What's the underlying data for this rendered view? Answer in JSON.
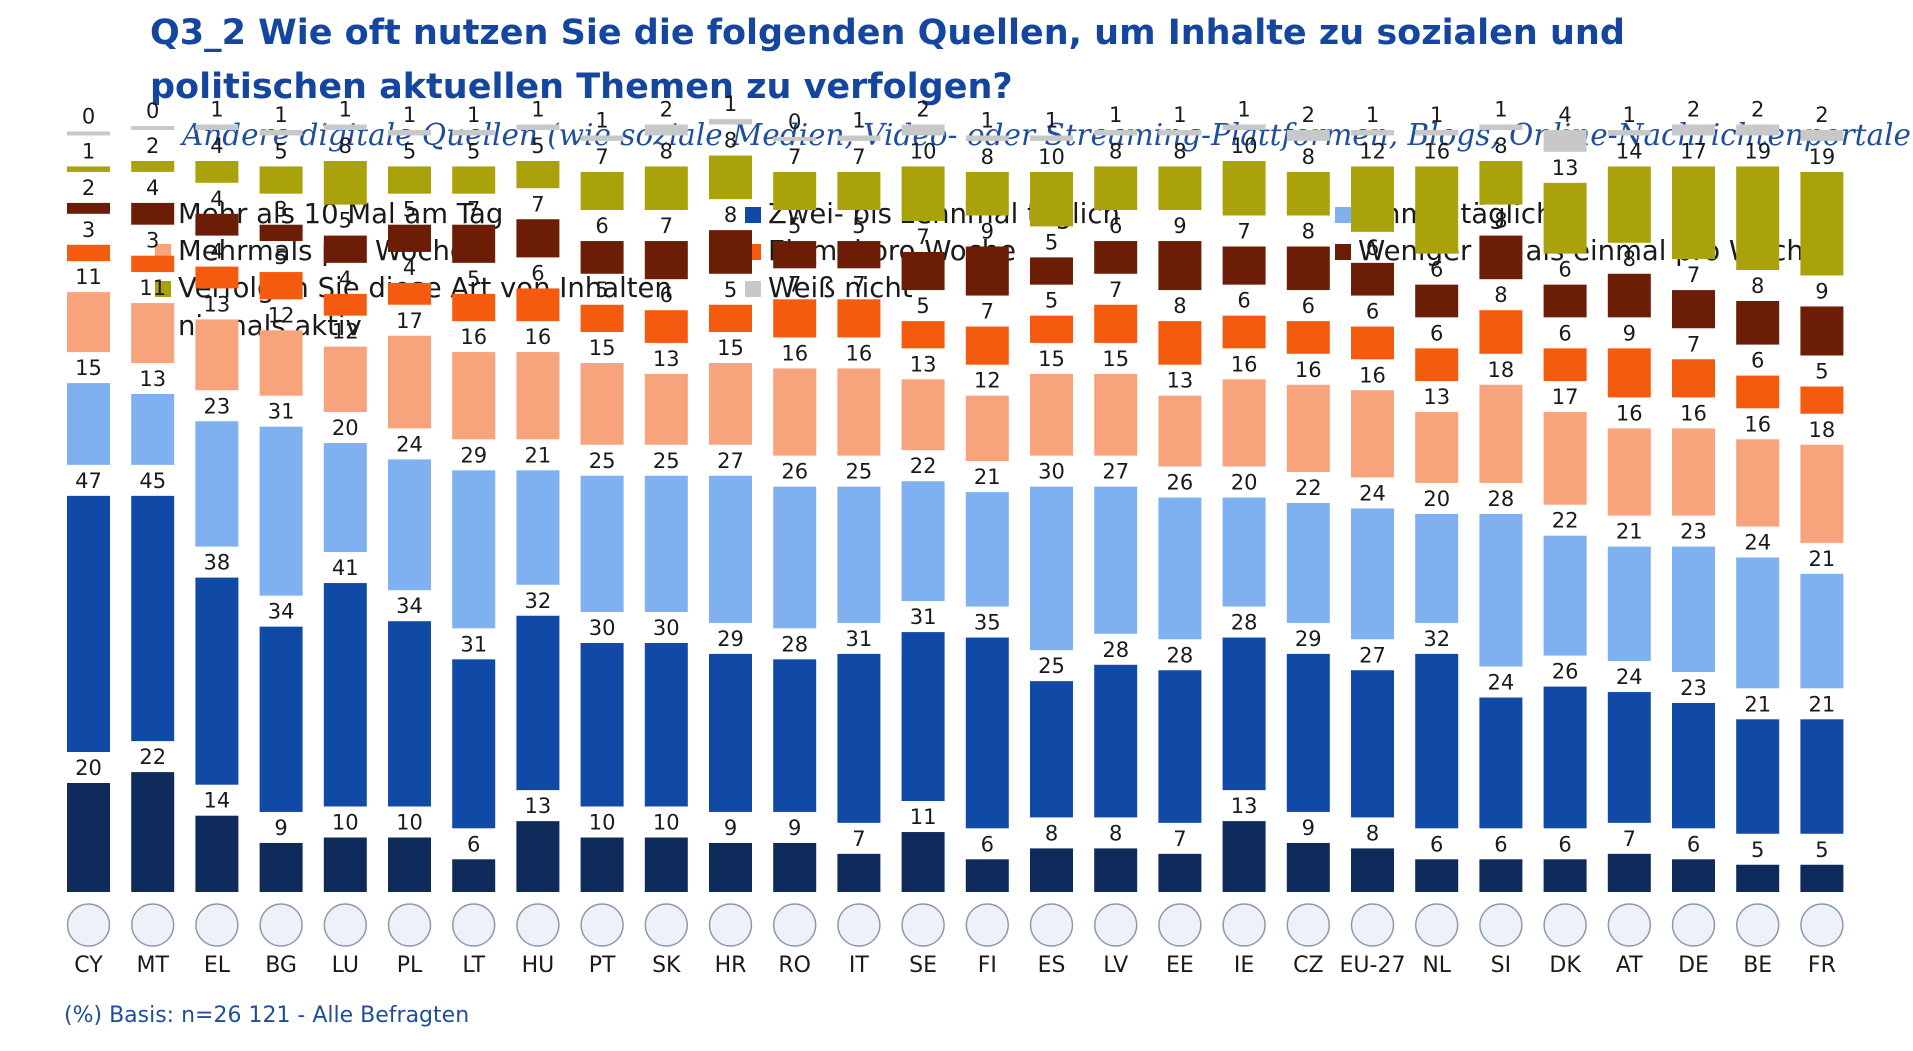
{
  "title": "Q3_2 Wie oft nutzen Sie die folgenden Quellen, um Inhalte zu sozialen und politischen aktuellen Themen zu verfolgen?",
  "subtitle": "Andere digitale Quellen (wie soziale Medien, Video- oder Streaming-Plattformen, Blogs, Online-Nachrichtenportale usw.)",
  "footer": "(%) Basis: n=26 121 - Alle Befragten",
  "legend": [
    {
      "label": "Mehr als 10 Mal am Tag",
      "color": "#0f2b5b"
    },
    {
      "label": "Zwei- bis zehnmal täglich",
      "color": "#114aa6"
    },
    {
      "label": "Einmal täglich",
      "color": "#7fb0f0"
    },
    {
      "label": "Mehrmals pro Woche",
      "color": "#f7a37c"
    },
    {
      "label": "Einmal pro Woche",
      "color": "#f55b0e"
    },
    {
      "label": "Weniger oft als einmal pro Woche",
      "color": "#6b1d06"
    },
    {
      "label": "Verfolgen Sie diese Art von Inhalten niemals aktiv",
      "color": "#aaa20a"
    },
    {
      "label": "Weiß nicht",
      "color": "#c8c8c8"
    }
  ],
  "chart_data": {
    "type": "bar",
    "stacked": true,
    "title": "Q3_2 Wie oft nutzen Sie die folgenden Quellen, um Inhalte zu sozialen und politischen aktuellen Themen zu verfolgen?",
    "subtitle": "Andere digitale Quellen (wie soziale Medien, Video- oder Streaming-Plattformen, Blogs, Online-Nachrichtenportale usw.)",
    "categories": [
      "CY",
      "MT",
      "EL",
      "BG",
      "LU",
      "PL",
      "LT",
      "HU",
      "PT",
      "SK",
      "HR",
      "RO",
      "IT",
      "SE",
      "FI",
      "ES",
      "LV",
      "EE",
      "IE",
      "CZ",
      "EU-27",
      "NL",
      "SI",
      "DK",
      "AT",
      "DE",
      "BE",
      "FR"
    ],
    "series": [
      {
        "name": "Mehr als 10 Mal am Tag",
        "values": [
          20,
          22,
          14,
          9,
          10,
          10,
          6,
          13,
          10,
          10,
          9,
          9,
          7,
          11,
          6,
          8,
          8,
          7,
          13,
          9,
          8,
          6,
          6,
          6,
          7,
          6,
          5,
          5
        ]
      },
      {
        "name": "Zwei- bis zehnmal täglich",
        "values": [
          47,
          45,
          38,
          34,
          41,
          34,
          31,
          32,
          30,
          30,
          29,
          28,
          31,
          31,
          35,
          25,
          28,
          28,
          28,
          29,
          27,
          32,
          24,
          26,
          24,
          23,
          21,
          21
        ]
      },
      {
        "name": "Einmal täglich",
        "values": [
          15,
          13,
          23,
          31,
          20,
          24,
          29,
          21,
          25,
          25,
          27,
          26,
          25,
          22,
          21,
          30,
          27,
          26,
          20,
          22,
          24,
          20,
          28,
          22,
          21,
          23,
          24,
          21
        ]
      },
      {
        "name": "Mehrmals pro Woche",
        "values": [
          11,
          11,
          13,
          12,
          12,
          17,
          16,
          16,
          15,
          13,
          15,
          16,
          16,
          13,
          12,
          15,
          15,
          13,
          16,
          16,
          16,
          13,
          18,
          17,
          16,
          16,
          16,
          18
        ]
      },
      {
        "name": "Einmal pro Woche",
        "values": [
          3,
          3,
          4,
          5,
          4,
          4,
          5,
          6,
          5,
          6,
          5,
          7,
          7,
          5,
          7,
          5,
          7,
          8,
          6,
          6,
          6,
          6,
          8,
          6,
          9,
          7,
          6,
          5
        ]
      },
      {
        "name": "Weniger oft als einmal pro Woche",
        "values": [
          2,
          4,
          4,
          3,
          5,
          5,
          7,
          7,
          6,
          7,
          8,
          5,
          5,
          7,
          9,
          5,
          6,
          9,
          7,
          8,
          6,
          6,
          8,
          6,
          8,
          7,
          8,
          9
        ]
      },
      {
        "name": "Verfolgen Sie diese Art von Inhalten niemals aktiv",
        "values": [
          1,
          2,
          4,
          5,
          8,
          5,
          5,
          5,
          7,
          8,
          8,
          7,
          7,
          10,
          8,
          10,
          8,
          8,
          10,
          8,
          12,
          16,
          8,
          13,
          14,
          17,
          19,
          19
        ]
      },
      {
        "name": "Weiß nicht",
        "values": [
          0,
          0,
          1,
          1,
          1,
          1,
          1,
          1,
          1,
          2,
          1,
          0,
          1,
          2,
          1,
          1,
          1,
          1,
          1,
          2,
          1,
          1,
          1,
          4,
          1,
          2,
          2,
          2
        ]
      }
    ],
    "colors": [
      "#0f2b5b",
      "#114aa6",
      "#7fb0f0",
      "#f7a37c",
      "#f55b0e",
      "#6b1d06",
      "#aaa20a",
      "#c8c8c8"
    ],
    "value_unit": "%",
    "ylim": [
      0,
      100
    ]
  }
}
